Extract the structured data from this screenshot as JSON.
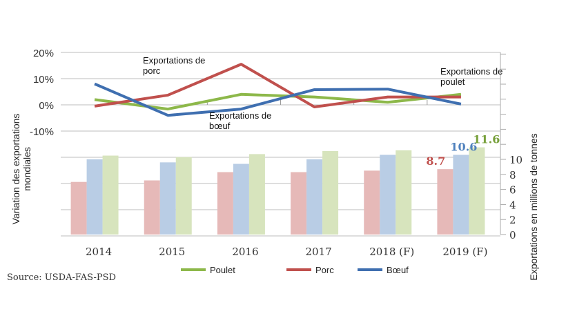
{
  "chart_data": {
    "type": "bar+line",
    "categories": [
      "2014",
      "2015",
      "2016",
      "2017",
      "2018 (F)",
      "2019 (F)"
    ],
    "bar_axis": {
      "label": "Exportations en millions de tonnes",
      "ylim": [
        0,
        12
      ],
      "ticks": [
        0,
        2,
        4,
        6,
        8,
        10
      ]
    },
    "line_axis": {
      "label": "Variation des exportations mondiales",
      "ylim": [
        -20,
        20
      ],
      "tick_labels": [
        "20%",
        "10%",
        "0%",
        "-10%"
      ],
      "ticks": [
        20,
        10,
        0,
        -10
      ]
    },
    "bar_series": [
      {
        "name": "Porc",
        "color": "#e6b9b8",
        "values": [
          7.0,
          7.2,
          8.3,
          8.3,
          8.5,
          8.7
        ]
      },
      {
        "name": "Bœuf",
        "color": "#b9cde5",
        "values": [
          10.0,
          9.6,
          9.4,
          10.0,
          10.6,
          10.6
        ]
      },
      {
        "name": "Poulet",
        "color": "#d7e4bd",
        "values": [
          10.5,
          10.3,
          10.7,
          11.1,
          11.2,
          11.6
        ]
      }
    ],
    "line_series": [
      {
        "name": "Poulet",
        "color": "#8db84a",
        "values": [
          2.0,
          -1.6,
          4.0,
          3.0,
          1.0,
          4.0
        ]
      },
      {
        "name": "Porc",
        "color": "#c0504d",
        "values": [
          -0.5,
          3.7,
          15.5,
          -0.8,
          3.0,
          3.0
        ]
      },
      {
        "name": "Bœuf",
        "color": "#3f6fb0",
        "values": [
          8.0,
          -4.0,
          -1.6,
          5.8,
          6.0,
          0.3
        ]
      }
    ],
    "data_labels": [
      {
        "text": "8.7",
        "color": "#c0504d"
      },
      {
        "text": "10.6",
        "color": "#4f81bd"
      },
      {
        "text": "11.6",
        "color": "#77a03a"
      }
    ],
    "annotations": [
      {
        "lines": [
          "Exportations de",
          "porc"
        ]
      },
      {
        "lines": [
          "Exportations de",
          "bœuf"
        ]
      },
      {
        "lines": [
          "Exportations de",
          "poulet"
        ]
      }
    ],
    "legend": {
      "placement": "bottom",
      "entries": [
        "Poulet",
        "Porc",
        "Bœuf"
      ]
    },
    "grid": true
  },
  "source": "Source: USDA-FAS-PSD"
}
